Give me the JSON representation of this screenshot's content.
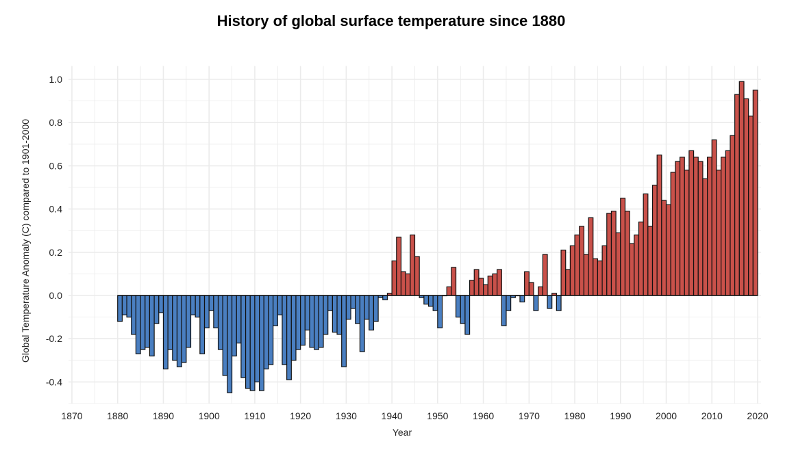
{
  "chart_data": {
    "type": "bar",
    "title": "History of global surface temperature since 1880",
    "xlabel": "Year",
    "ylabel": "Global Temperature Anomaly (C) compared to 1901-2000",
    "xlim": [
      1870,
      2020
    ],
    "ylim": [
      -0.5,
      1.03
    ],
    "xticks": [
      1870,
      1880,
      1890,
      1900,
      1910,
      1920,
      1930,
      1940,
      1950,
      1960,
      1970,
      1980,
      1990,
      2000,
      2010,
      2020
    ],
    "yticks": [
      -0.4,
      -0.2,
      0.0,
      0.2,
      0.4,
      0.6,
      0.8,
      1.0
    ],
    "ytick_labels": [
      "-0.4",
      "-0.2",
      "0.0",
      "0.2",
      "0.4",
      "0.6",
      "0.8",
      "1.0"
    ],
    "grid": true,
    "colors": {
      "positive": "#c9514a",
      "negative": "#4a7fc1",
      "outline": "#111111"
    },
    "start_year": 1880,
    "values": [
      -0.12,
      -0.09,
      -0.1,
      -0.18,
      -0.27,
      -0.25,
      -0.24,
      -0.28,
      -0.13,
      -0.08,
      -0.34,
      -0.25,
      -0.3,
      -0.33,
      -0.31,
      -0.24,
      -0.09,
      -0.1,
      -0.27,
      -0.15,
      -0.07,
      -0.15,
      -0.25,
      -0.37,
      -0.45,
      -0.28,
      -0.22,
      -0.38,
      -0.43,
      -0.44,
      -0.4,
      -0.44,
      -0.34,
      -0.32,
      -0.14,
      -0.09,
      -0.32,
      -0.39,
      -0.3,
      -0.25,
      -0.23,
      -0.16,
      -0.24,
      -0.25,
      -0.24,
      -0.18,
      -0.07,
      -0.17,
      -0.18,
      -0.33,
      -0.11,
      -0.06,
      -0.13,
      -0.26,
      -0.11,
      -0.16,
      -0.12,
      -0.01,
      -0.02,
      0.01,
      0.16,
      0.27,
      0.11,
      0.1,
      0.28,
      0.18,
      -0.01,
      -0.04,
      -0.05,
      -0.07,
      -0.15,
      0.0,
      0.04,
      0.13,
      -0.1,
      -0.13,
      -0.18,
      0.07,
      0.12,
      0.08,
      0.05,
      0.09,
      0.1,
      0.12,
      -0.14,
      -0.07,
      -0.01,
      0.0,
      -0.03,
      0.11,
      0.06,
      -0.07,
      0.04,
      0.19,
      -0.06,
      0.01,
      -0.07,
      0.21,
      0.12,
      0.23,
      0.28,
      0.32,
      0.19,
      0.36,
      0.17,
      0.16,
      0.23,
      0.38,
      0.39,
      0.29,
      0.45,
      0.39,
      0.24,
      0.28,
      0.34,
      0.47,
      0.32,
      0.51,
      0.65,
      0.44,
      0.42,
      0.57,
      0.62,
      0.64,
      0.58,
      0.67,
      0.64,
      0.62,
      0.54,
      0.64,
      0.72,
      0.58,
      0.64,
      0.67,
      0.74,
      0.93,
      0.99,
      0.91,
      0.83,
      0.95
    ]
  }
}
